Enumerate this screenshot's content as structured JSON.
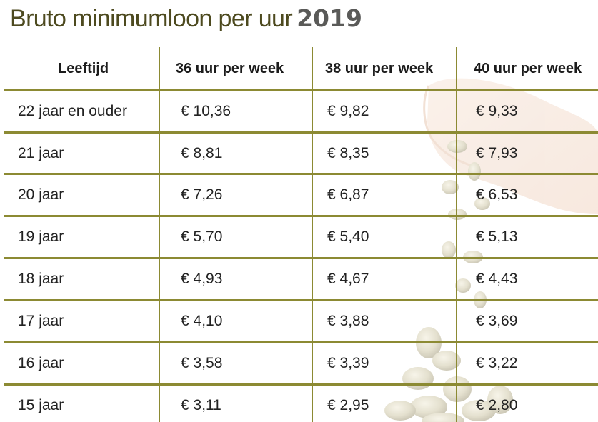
{
  "title": {
    "main": "Bruto minimumloon per uur",
    "year": "2019"
  },
  "colors": {
    "rule": "#8c8a33",
    "title": "#4d4a1f",
    "year": "#5a5a58"
  },
  "table": {
    "headers": [
      "Leeftijd",
      "36 uur per week",
      "38 uur per week",
      "40 uur per week"
    ],
    "rows": [
      [
        "22 jaar en ouder",
        "€ 10,36",
        "€ 9,82",
        "€ 9,33"
      ],
      [
        "21 jaar",
        "€ 8,81",
        "€ 8,35",
        "€ 7,93"
      ],
      [
        "20 jaar",
        "€ 7,26",
        "€ 6,87",
        "€ 6,53"
      ],
      [
        "19 jaar",
        "€ 5,70",
        "€ 5,40",
        "€ 5,13"
      ],
      [
        "18 jaar",
        "€ 4,93",
        "€ 4,67",
        "€ 4,43"
      ],
      [
        "17 jaar",
        "€ 4,10",
        "€ 3,88",
        "€ 3,69"
      ],
      [
        "16 jaar",
        "€ 3,58",
        "€ 3,39",
        "€ 3,22"
      ],
      [
        "15 jaar",
        "€ 3,11",
        "€ 2,95",
        "€ 2,80"
      ]
    ]
  }
}
